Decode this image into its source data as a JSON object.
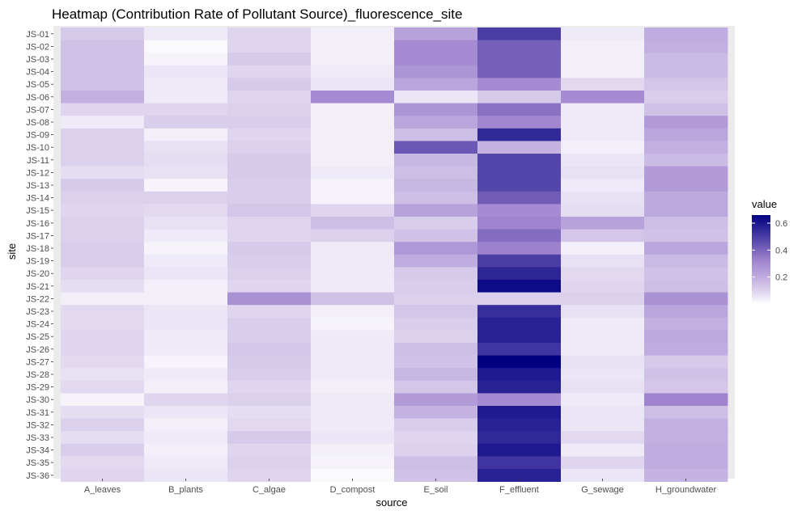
{
  "chart_data": {
    "type": "heatmap",
    "title": "Heatmap (Contribution Rate of Pollutant Source)_fluorescence_site",
    "xlabel": "source",
    "ylabel": "site",
    "x_categories": [
      "A_leaves",
      "B_plants",
      "C_algae",
      "D_compost",
      "E_soil",
      "F_effluent",
      "G_sewage",
      "H_groundwater"
    ],
    "y_categories": [
      "JS-01",
      "JS-02",
      "JS-03",
      "JS-04",
      "JS-05",
      "JS-06",
      "JS-07",
      "JS-08",
      "JS-09",
      "JS-10",
      "JS-11",
      "JS-12",
      "JS-13",
      "JS-14",
      "JS-15",
      "JS-16",
      "JS-17",
      "JS-18",
      "JS-19",
      "JS-20",
      "JS-21",
      "JS-22",
      "JS-23",
      "JS-24",
      "JS-25",
      "JS-26",
      "JS-27",
      "JS-28",
      "JS-29",
      "JS-30",
      "JS-31",
      "JS-32",
      "JS-33",
      "JS-34",
      "JS-35",
      "JS-36"
    ],
    "values": [
      [
        0.12,
        0.04,
        0.09,
        0.03,
        0.23,
        0.5,
        0.04,
        0.2
      ],
      [
        0.14,
        0.01,
        0.09,
        0.03,
        0.3,
        0.41,
        0.03,
        0.19
      ],
      [
        0.14,
        0.02,
        0.12,
        0.03,
        0.3,
        0.41,
        0.03,
        0.16
      ],
      [
        0.14,
        0.05,
        0.09,
        0.04,
        0.27,
        0.41,
        0.03,
        0.16
      ],
      [
        0.14,
        0.04,
        0.12,
        0.05,
        0.22,
        0.3,
        0.08,
        0.13
      ],
      [
        0.19,
        0.04,
        0.09,
        0.3,
        0.05,
        0.12,
        0.3,
        0.11
      ],
      [
        0.09,
        0.09,
        0.1,
        0.03,
        0.27,
        0.37,
        0.04,
        0.14
      ],
      [
        0.04,
        0.11,
        0.11,
        0.03,
        0.22,
        0.31,
        0.04,
        0.25
      ],
      [
        0.1,
        0.03,
        0.09,
        0.03,
        0.15,
        0.55,
        0.04,
        0.22
      ],
      [
        0.1,
        0.06,
        0.1,
        0.03,
        0.43,
        0.18,
        0.03,
        0.19
      ],
      [
        0.1,
        0.07,
        0.12,
        0.03,
        0.17,
        0.48,
        0.05,
        0.16
      ],
      [
        0.07,
        0.06,
        0.12,
        0.04,
        0.15,
        0.48,
        0.06,
        0.25
      ],
      [
        0.12,
        0.02,
        0.11,
        0.02,
        0.17,
        0.48,
        0.04,
        0.25
      ],
      [
        0.1,
        0.1,
        0.11,
        0.02,
        0.15,
        0.42,
        0.06,
        0.21
      ],
      [
        0.09,
        0.08,
        0.13,
        0.09,
        0.23,
        0.3,
        0.07,
        0.21
      ],
      [
        0.1,
        0.06,
        0.09,
        0.15,
        0.11,
        0.32,
        0.23,
        0.15
      ],
      [
        0.1,
        0.04,
        0.09,
        0.1,
        0.14,
        0.38,
        0.13,
        0.14
      ],
      [
        0.11,
        0.02,
        0.12,
        0.04,
        0.26,
        0.33,
        0.03,
        0.22
      ],
      [
        0.11,
        0.04,
        0.11,
        0.04,
        0.2,
        0.5,
        0.06,
        0.16
      ],
      [
        0.09,
        0.05,
        0.1,
        0.04,
        0.12,
        0.56,
        0.08,
        0.14
      ],
      [
        0.07,
        0.03,
        0.09,
        0.04,
        0.11,
        0.63,
        0.09,
        0.15
      ],
      [
        0.03,
        0.03,
        0.28,
        0.14,
        0.1,
        0.1,
        0.1,
        0.28
      ],
      [
        0.08,
        0.05,
        0.09,
        0.03,
        0.13,
        0.54,
        0.06,
        0.22
      ],
      [
        0.08,
        0.05,
        0.11,
        0.02,
        0.11,
        0.57,
        0.04,
        0.19
      ],
      [
        0.09,
        0.04,
        0.11,
        0.04,
        0.1,
        0.57,
        0.04,
        0.21
      ],
      [
        0.09,
        0.04,
        0.13,
        0.04,
        0.15,
        0.52,
        0.04,
        0.2
      ],
      [
        0.08,
        0.02,
        0.12,
        0.04,
        0.14,
        0.66,
        0.06,
        0.12
      ],
      [
        0.06,
        0.04,
        0.11,
        0.04,
        0.17,
        0.59,
        0.05,
        0.14
      ],
      [
        0.08,
        0.03,
        0.09,
        0.03,
        0.13,
        0.57,
        0.06,
        0.13
      ],
      [
        0.02,
        0.09,
        0.1,
        0.04,
        0.25,
        0.3,
        0.04,
        0.32
      ],
      [
        0.07,
        0.05,
        0.07,
        0.04,
        0.18,
        0.59,
        0.05,
        0.15
      ],
      [
        0.1,
        0.03,
        0.08,
        0.04,
        0.11,
        0.57,
        0.05,
        0.19
      ],
      [
        0.07,
        0.04,
        0.12,
        0.05,
        0.09,
        0.55,
        0.08,
        0.19
      ],
      [
        0.11,
        0.03,
        0.09,
        0.03,
        0.1,
        0.59,
        0.04,
        0.2
      ],
      [
        0.08,
        0.04,
        0.1,
        0.02,
        0.15,
        0.52,
        0.09,
        0.2
      ],
      [
        0.09,
        0.05,
        0.09,
        0.01,
        0.14,
        0.57,
        0.05,
        0.18
      ]
    ],
    "value_range": [
      0,
      0.66
    ],
    "color_low": "#ffffff",
    "color_high": "#000080",
    "legend": {
      "title": "value",
      "position": "right",
      "ticks": [
        0.2,
        0.4,
        0.6
      ],
      "tick_labels": [
        "0.2",
        "0.4",
        "0.6"
      ]
    },
    "panel_background": "#ebebeb",
    "grid": true
  }
}
